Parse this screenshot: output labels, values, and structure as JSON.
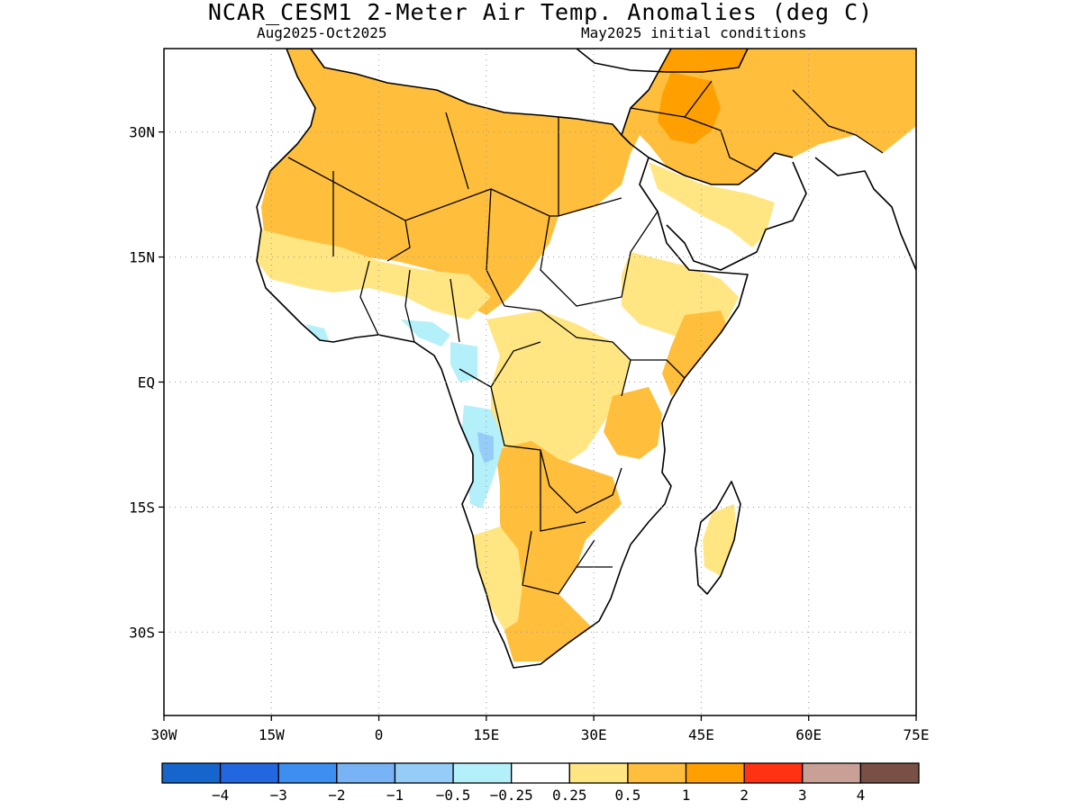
{
  "title": "NCAR_CESM1 2-Meter Air Temp. Anomalies (deg C)",
  "subtitle_left": "Aug2025-Oct2025",
  "subtitle_right": "May2025 initial conditions",
  "map": {
    "lon_range": [
      -30,
      75
    ],
    "lat_range": [
      -40,
      40
    ],
    "lon_ticks": [
      {
        "value": -30,
        "label": "30W"
      },
      {
        "value": -15,
        "label": "15W"
      },
      {
        "value": 0,
        "label": "0"
      },
      {
        "value": 15,
        "label": "15E"
      },
      {
        "value": 30,
        "label": "30E"
      },
      {
        "value": 45,
        "label": "45E"
      },
      {
        "value": 60,
        "label": "60E"
      },
      {
        "value": 75,
        "label": "75E"
      }
    ],
    "lat_ticks": [
      {
        "value": 30,
        "label": "30N"
      },
      {
        "value": 15,
        "label": "15N"
      },
      {
        "value": 0,
        "label": "EQ"
      },
      {
        "value": -15,
        "label": "15S"
      },
      {
        "value": -30,
        "label": "30S"
      }
    ],
    "grid": true,
    "grid_style": "dotted"
  },
  "colorbar": {
    "colors": [
      "#1565cc",
      "#2266e0",
      "#3c8ef0",
      "#78b4f5",
      "#96cdf8",
      "#b4f0fa",
      "#ffffff",
      "#ffe682",
      "#ffbe3c",
      "#ffa000",
      "#ff3214",
      "#c8a096",
      "#785046"
    ],
    "labels": [
      "-4",
      "-3",
      "-2",
      "-1",
      "-0.5",
      "-0.25",
      "0.25",
      "0.5",
      "1",
      "2",
      "3",
      "4"
    ]
  },
  "colors": {
    "land_outline": "#000000",
    "anom_0_5_to_1": "#ffbe3c",
    "anom_0_25_to_0_5": "#ffe682",
    "anom_1_to_2": "#ffa000",
    "anom_neg_0_25_to_neg_0_5": "#b4f0fa",
    "anom_neg_0_5_to_neg_1": "#96cdf8"
  }
}
